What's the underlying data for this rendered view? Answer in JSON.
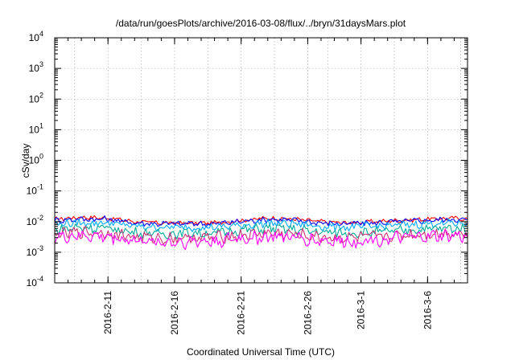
{
  "chart_data": {
    "type": "line",
    "title": "/data/run/goesPlots/archive/2016-03-08/flux/../bryn/31daysMars.plot",
    "xlabel": "Coordinated Universal Time (UTC)",
    "ylabel": "cSv/day",
    "yscale": "log",
    "ylim": [
      0.0001,
      10000
    ],
    "y_ticks": [
      {
        "value": 0.0001,
        "base": "10",
        "exp": "-4"
      },
      {
        "value": 0.001,
        "base": "10",
        "exp": "-3"
      },
      {
        "value": 0.01,
        "base": "10",
        "exp": "-2"
      },
      {
        "value": 0.1,
        "base": "10",
        "exp": "-1"
      },
      {
        "value": 1,
        "base": "10",
        "exp": "0"
      },
      {
        "value": 10,
        "base": "10",
        "exp": "1"
      },
      {
        "value": 100,
        "base": "10",
        "exp": "2"
      },
      {
        "value": 1000,
        "base": "10",
        "exp": "3"
      },
      {
        "value": 10000,
        "base": "10",
        "exp": "4"
      }
    ],
    "xlim": [
      "2016-02-07",
      "2016-03-09"
    ],
    "x_ticks": [
      "2016-2-11",
      "2016-2-16",
      "2016-2-21",
      "2016-2-26",
      "2016-3-1",
      "2016-3-6"
    ],
    "x_tick_dates": [
      "2016-02-11",
      "2016-02-16",
      "2016-02-21",
      "2016-02-26",
      "2016-03-01",
      "2016-03-06"
    ],
    "grid": true,
    "x": [
      "2016-02-07",
      "2016-02-09",
      "2016-02-11",
      "2016-02-13",
      "2016-02-15",
      "2016-02-17",
      "2016-02-19",
      "2016-02-21",
      "2016-02-23",
      "2016-02-25",
      "2016-02-27",
      "2016-02-29",
      "2016-03-02",
      "2016-03-04",
      "2016-03-06",
      "2016-03-08",
      "2016-03-09"
    ],
    "series": [
      {
        "color": "#ff0000",
        "values": [
          0.012,
          0.014,
          0.013,
          0.01,
          0.009,
          0.009,
          0.009,
          0.011,
          0.013,
          0.012,
          0.01,
          0.009,
          0.01,
          0.011,
          0.012,
          0.013,
          0.012
        ]
      },
      {
        "color": "#0000ff",
        "values": [
          0.011,
          0.012,
          0.012,
          0.009,
          0.0085,
          0.0085,
          0.0085,
          0.01,
          0.012,
          0.011,
          0.009,
          0.0085,
          0.009,
          0.01,
          0.011,
          0.012,
          0.011
        ]
      },
      {
        "color": "#00aaff",
        "values": [
          0.0085,
          0.009,
          0.0092,
          0.007,
          0.0065,
          0.0065,
          0.0065,
          0.0075,
          0.009,
          0.0085,
          0.007,
          0.0065,
          0.007,
          0.0078,
          0.0085,
          0.009,
          0.0085
        ]
      },
      {
        "color": "#00aa99",
        "values": [
          0.0055,
          0.0065,
          0.006,
          0.0045,
          0.004,
          0.0042,
          0.0042,
          0.0052,
          0.006,
          0.0055,
          0.0045,
          0.0042,
          0.0045,
          0.005,
          0.0058,
          0.006,
          0.0055
        ]
      },
      {
        "color": "#cc3377",
        "values": [
          0.0038,
          0.0045,
          0.0042,
          0.0032,
          0.0028,
          0.003,
          0.003,
          0.0036,
          0.0042,
          0.0038,
          0.0031,
          0.0029,
          0.0032,
          0.0035,
          0.004,
          0.0042,
          0.0038
        ]
      },
      {
        "color": "#ff00ff",
        "values": [
          0.003,
          0.0035,
          0.0032,
          0.0024,
          0.0021,
          0.0022,
          0.0023,
          0.0028,
          0.0032,
          0.003,
          0.0024,
          0.0022,
          0.0025,
          0.0028,
          0.0032,
          0.0034,
          0.003
        ]
      }
    ]
  }
}
